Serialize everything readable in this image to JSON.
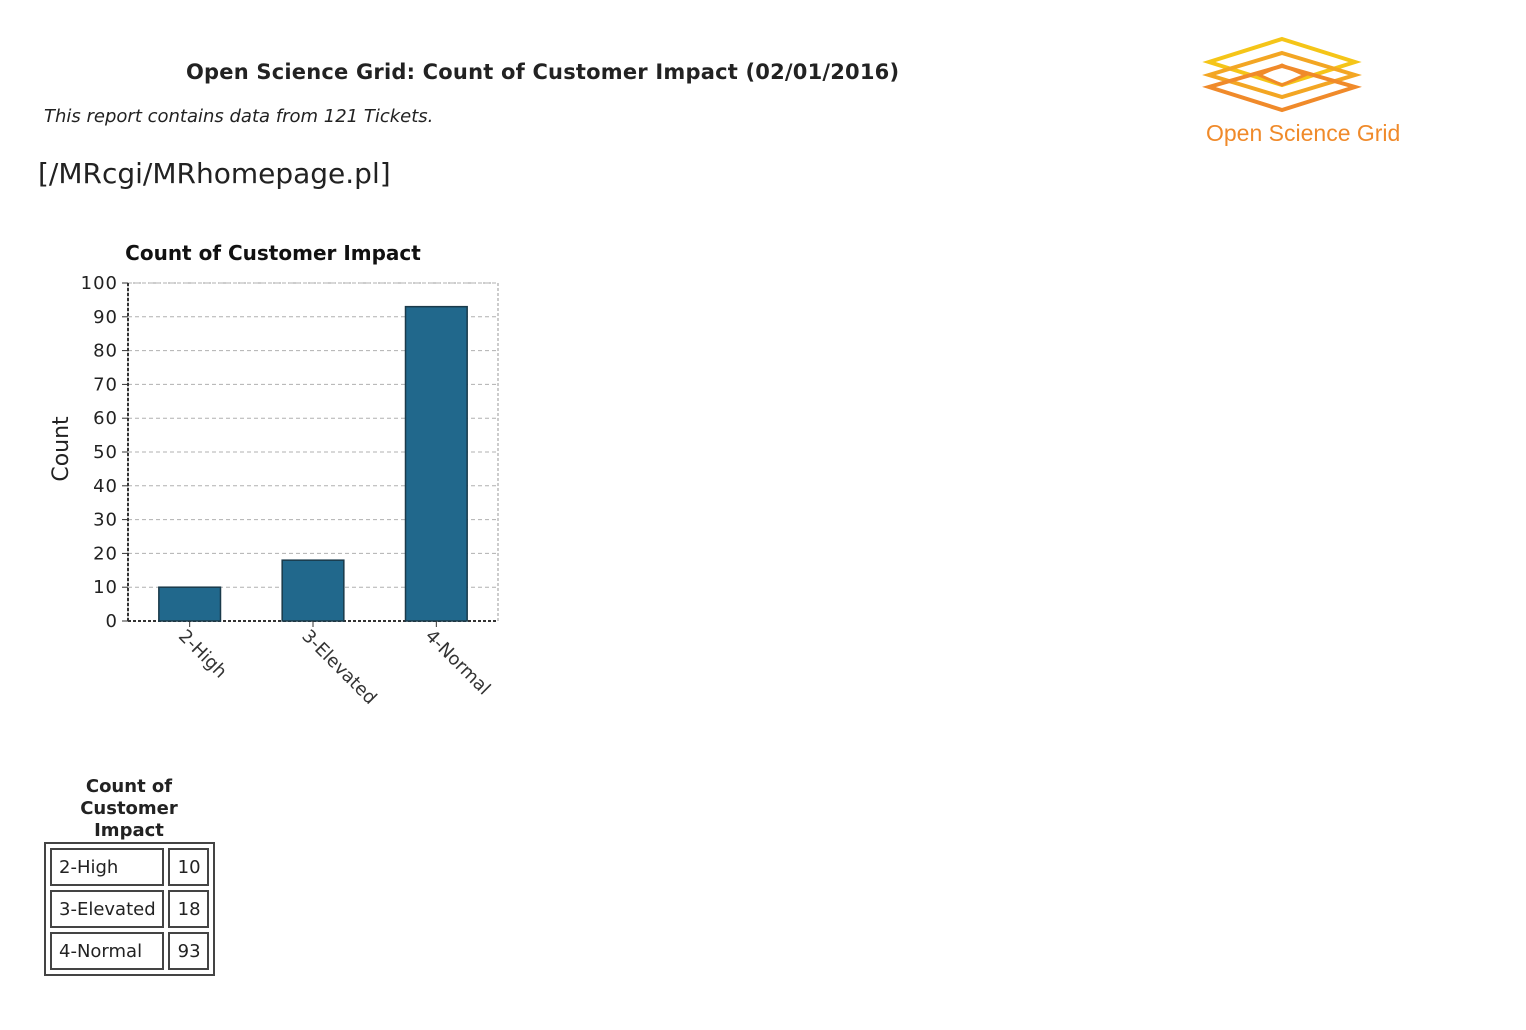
{
  "report": {
    "title": "Open Science Grid: Count of Customer Impact (02/01/2016)",
    "subtitle": "This report contains data from 121 Tickets.",
    "home_link": "[/MRcgi/MRhomepage.pl]"
  },
  "logo": {
    "text": "Open Science Grid",
    "colors": [
      "#f5c518",
      "#f3a623",
      "#f08a2a"
    ]
  },
  "chart_data": {
    "type": "bar",
    "title": "Count of Customer Impact",
    "xlabel": "",
    "ylabel": "Count",
    "categories": [
      "2-High",
      "3-Elevated",
      "4-Normal"
    ],
    "values": [
      10,
      18,
      93
    ],
    "ylim": [
      0,
      100
    ],
    "yticks": [
      0,
      10,
      20,
      30,
      40,
      50,
      60,
      70,
      80,
      90,
      100
    ],
    "grid": true,
    "legend": "none",
    "bar_color": "#21688c"
  },
  "table": {
    "caption": "Count of Customer Impact",
    "rows": [
      {
        "label": "2-High",
        "value": "10"
      },
      {
        "label": "3-Elevated",
        "value": "18"
      },
      {
        "label": "4-Normal",
        "value": "93"
      }
    ]
  }
}
